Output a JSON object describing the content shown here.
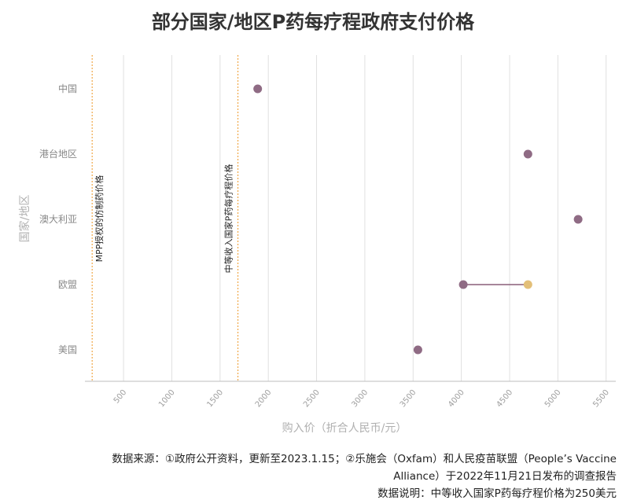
{
  "chart_data": {
    "type": "scatter",
    "title": "部分国家/地区P药每疗程政府支付价格",
    "xlabel": "购入价（折合人民币/元）",
    "ylabel": "国家/地区",
    "xlim": [
      100,
      5600
    ],
    "xticks": [
      500,
      1000,
      1500,
      2000,
      2500,
      3000,
      3500,
      4000,
      4500,
      5000,
      5500
    ],
    "categories": [
      "中国",
      "港台地区",
      "澳大利亚",
      "欧盟",
      "美国"
    ],
    "points": [
      {
        "category": "中国",
        "x": 1890,
        "color": "#8f6b84"
      },
      {
        "category": "港台地区",
        "x": 4690,
        "color": "#8f6b84"
      },
      {
        "category": "澳大利亚",
        "x": 5210,
        "color": "#8f6b84"
      },
      {
        "category": "欧盟",
        "x": 4020,
        "color": "#8f6b84"
      },
      {
        "category": "欧盟",
        "x": 4690,
        "color": "#e3bf78"
      },
      {
        "category": "美国",
        "x": 3550,
        "color": "#8f6b84"
      }
    ],
    "ranges": [
      {
        "category": "欧盟",
        "from": 4020,
        "to": 4690,
        "color": "#8a5f78"
      }
    ],
    "reference_lines": [
      {
        "x": 175,
        "label": "MPP授权的仿制药价格",
        "color": "#f0a848"
      },
      {
        "x": 1685,
        "label": "中等收入国家P药每疗程价格",
        "color": "#f0a848"
      }
    ],
    "grid": true,
    "legend": "none"
  },
  "footer": {
    "source_line1": "数据来源：①政府公开资料，更新至2023.1.15；②乐施会（Oxfam）和人民疫苗联盟（People’s Vaccine",
    "source_line2": "Alliance）于2022年11月21日发布的调查报告",
    "note": "数据说明：中等收入国家P药每疗程价格为250美元"
  }
}
